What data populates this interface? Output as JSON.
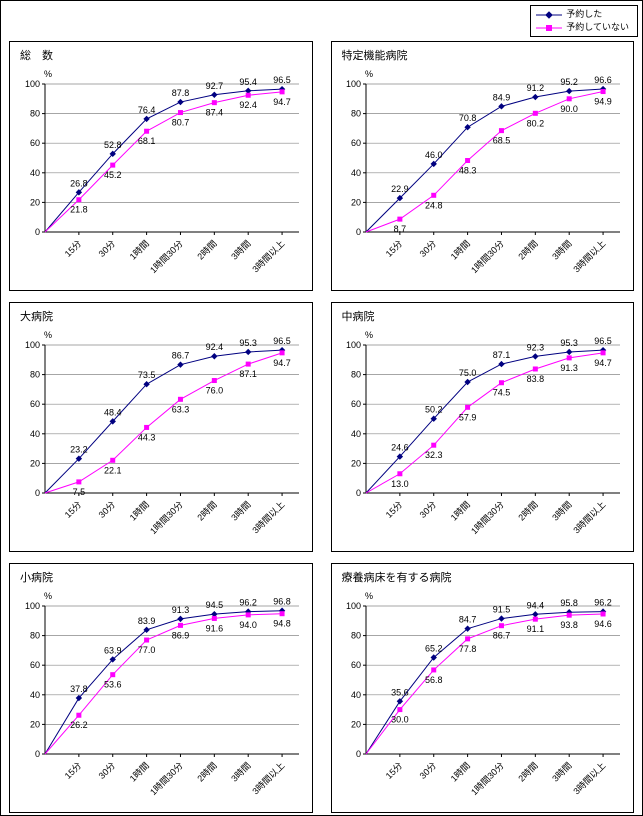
{
  "legend": {
    "items": [
      {
        "label": "予約した",
        "color": "#000080",
        "marker": "diamond"
      },
      {
        "label": "予約していない",
        "color": "#FF00FF",
        "marker": "square"
      }
    ]
  },
  "chart_data": [
    {
      "type": "line",
      "title": "総　数",
      "ylabel": "%",
      "ylim": [
        0,
        100
      ],
      "grid": true,
      "categories": [
        "15分",
        "30分",
        "1時間",
        "1時間30分",
        "2時間",
        "3時間",
        "3時間以上"
      ],
      "series": [
        {
          "name": "予約した",
          "values": [
            26.8,
            52.8,
            76.4,
            87.8,
            92.7,
            95.4,
            96.5
          ]
        },
        {
          "name": "予約していない",
          "values": [
            21.8,
            45.2,
            68.1,
            80.7,
            87.4,
            92.4,
            94.7
          ]
        }
      ]
    },
    {
      "type": "line",
      "title": "特定機能病院",
      "ylabel": "%",
      "ylim": [
        0,
        100
      ],
      "grid": true,
      "categories": [
        "15分",
        "30分",
        "1時間",
        "1時間30分",
        "2時間",
        "3時間",
        "3時間以上"
      ],
      "series": [
        {
          "name": "予約した",
          "values": [
            22.9,
            46.0,
            70.8,
            84.9,
            91.2,
            95.2,
            96.6
          ]
        },
        {
          "name": "予約していない",
          "values": [
            8.7,
            24.8,
            48.3,
            68.5,
            80.2,
            90.0,
            94.9
          ]
        }
      ]
    },
    {
      "type": "line",
      "title": "大病院",
      "ylabel": "%",
      "ylim": [
        0,
        100
      ],
      "grid": true,
      "categories": [
        "15分",
        "30分",
        "1時間",
        "1時間30分",
        "2時間",
        "3時間",
        "3時間以上"
      ],
      "series": [
        {
          "name": "予約した",
          "values": [
            23.2,
            48.4,
            73.5,
            86.7,
            92.4,
            95.3,
            96.5
          ]
        },
        {
          "name": "予約していない",
          "values": [
            7.5,
            22.1,
            44.3,
            63.3,
            76.0,
            87.1,
            94.7
          ]
        }
      ]
    },
    {
      "type": "line",
      "title": "中病院",
      "ylabel": "%",
      "ylim": [
        0,
        100
      ],
      "grid": true,
      "categories": [
        "15分",
        "30分",
        "1時間",
        "1時間30分",
        "2時間",
        "3時間",
        "3時間以上"
      ],
      "series": [
        {
          "name": "予約した",
          "values": [
            24.6,
            50.2,
            75.0,
            87.1,
            92.3,
            95.3,
            96.5
          ]
        },
        {
          "name": "予約していない",
          "values": [
            13.0,
            32.3,
            57.9,
            74.5,
            83.8,
            91.3,
            94.7
          ]
        }
      ]
    },
    {
      "type": "line",
      "title": "小病院",
      "ylabel": "%",
      "ylim": [
        0,
        100
      ],
      "grid": true,
      "categories": [
        "15分",
        "30分",
        "1時間",
        "1時間30分",
        "2時間",
        "3時間",
        "3時間以上"
      ],
      "series": [
        {
          "name": "予約した",
          "values": [
            37.8,
            63.9,
            83.9,
            91.3,
            94.5,
            96.2,
            96.8
          ]
        },
        {
          "name": "予約していない",
          "values": [
            26.2,
            53.6,
            77.0,
            86.9,
            91.6,
            94.0,
            94.8
          ]
        }
      ]
    },
    {
      "type": "line",
      "title": "療養病床を有する病院",
      "ylabel": "%",
      "ylim": [
        0,
        100
      ],
      "grid": true,
      "categories": [
        "15分",
        "30分",
        "1時間",
        "1時間30分",
        "2時間",
        "3時間",
        "3時間以上"
      ],
      "series": [
        {
          "name": "予約した",
          "values": [
            35.6,
            65.2,
            84.7,
            91.5,
            94.4,
            95.8,
            96.2
          ]
        },
        {
          "name": "予約していない",
          "values": [
            30.0,
            56.8,
            77.8,
            86.7,
            91.1,
            93.8,
            94.6
          ]
        }
      ]
    }
  ]
}
